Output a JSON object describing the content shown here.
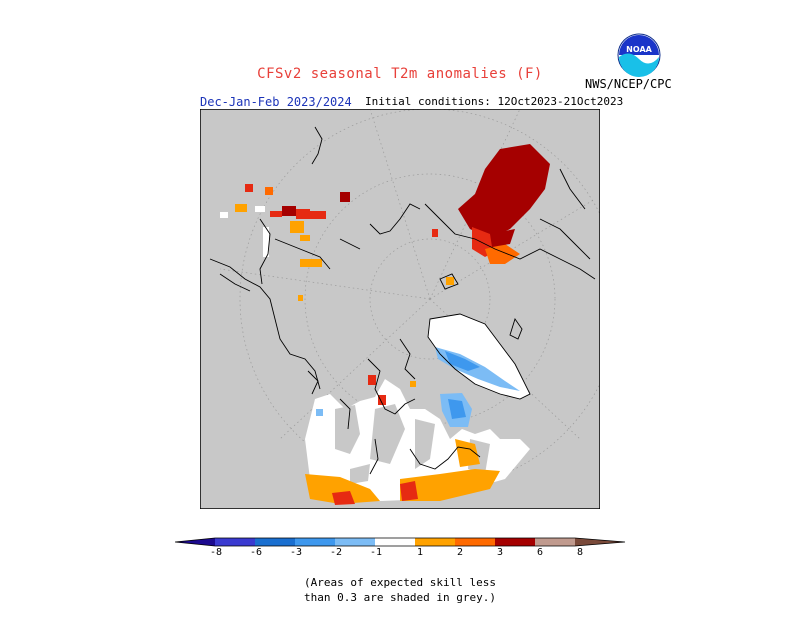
{
  "title": "CFSv2 seasonal T2m anomalies (F)",
  "agency": "NWS/NCEP/CPC",
  "logo_text": "NOAA",
  "season": "Dec-Jan-Feb 2023/2024",
  "initial_conditions": "Initial conditions: 12Oct2023-21Oct2023",
  "legend": {
    "ticks": [
      "-8",
      "-6",
      "-3",
      "-2",
      "-1",
      "1",
      "2",
      "3",
      "6",
      "8"
    ],
    "colors": [
      "#1c0a8f",
      "#3a3ad0",
      "#1a6fd0",
      "#3e98ee",
      "#7cbcf5",
      "#ffffff",
      "#ffa200",
      "#ff6a00",
      "#e62a12",
      "#a50000",
      "#c09a8e",
      "#7a4a3a"
    ]
  },
  "note_line1": "(Areas of expected skill less",
  "note_line2": "than 0.3 are shaded in grey.)",
  "map_colors": {
    "background": "#c8c8c8",
    "neutral": "#ffffff",
    "cold_2": "#3e98ee",
    "cold_1": "#7cbcf5",
    "warm_1": "#ffa200",
    "warm_2": "#ff6a00",
    "warm_3": "#e62a12",
    "warm_4": "#a50000"
  }
}
